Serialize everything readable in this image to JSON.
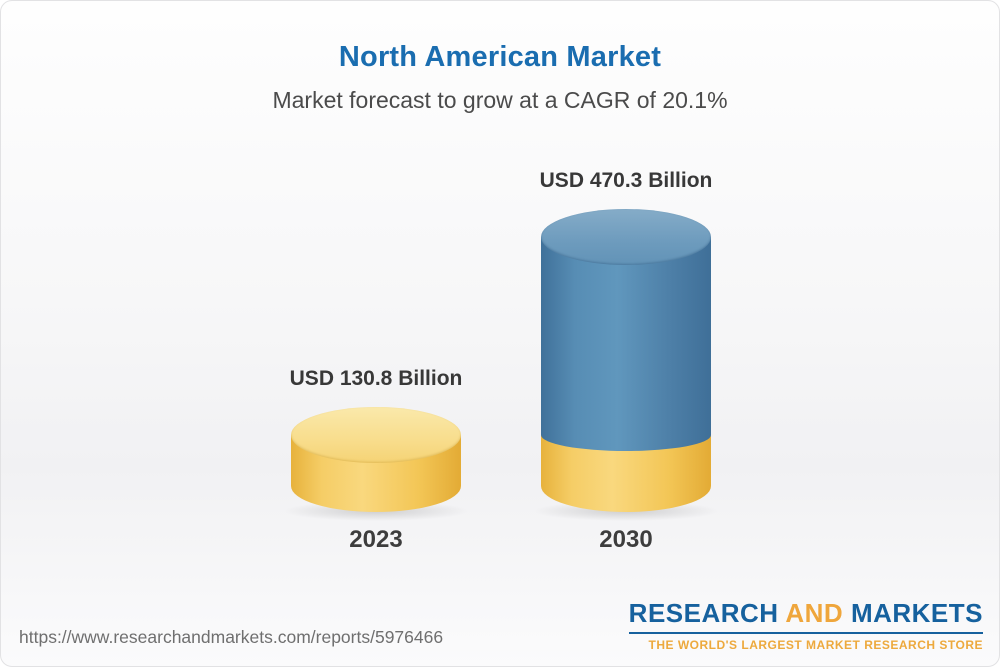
{
  "header": {
    "title": "North American Market",
    "subtitle": "Market forecast to grow at a CAGR of 20.1%"
  },
  "chart_data": {
    "type": "bar",
    "variant": "3d-cylinder",
    "title": "North American Market",
    "subtitle": "Market forecast to grow at a CAGR of 20.1%",
    "categories": [
      "2023",
      "2030"
    ],
    "values": [
      130.8,
      470.3
    ],
    "value_labels": [
      "USD 130.8 Billion",
      "USD 470.3 Billion"
    ],
    "unit": "USD Billion",
    "cagr_percent": 20.1,
    "ylim": [
      0,
      500
    ],
    "grid": false,
    "legend": false,
    "bar_colors": [
      "#F4C85C",
      "#4C7FA8"
    ],
    "stacking_note": "2030 cylinder shows the 2023 value as a yellow base segment under the blue segment"
  },
  "footer": {
    "url": "https://www.researchandmarkets.com/reports/5976466",
    "logo": {
      "line1_part1": "RESEARCH",
      "line1_part2": "AND",
      "line1_part3": "MARKETS",
      "tagline": "THE WORLD'S LARGEST MARKET RESEARCH STORE"
    }
  },
  "colors": {
    "title_blue": "#1A6DB0",
    "text_dark": "#3D3D3D",
    "url_gray": "#6F6F6F",
    "logo_blue": "#16619E",
    "logo_gold": "#EFA63C",
    "bar_yellow_body": "#F4C85C",
    "bar_yellow_top": "#F9E195",
    "bar_blue_body": "#4C7FA8",
    "bar_blue_top": "#6F9DBF"
  }
}
